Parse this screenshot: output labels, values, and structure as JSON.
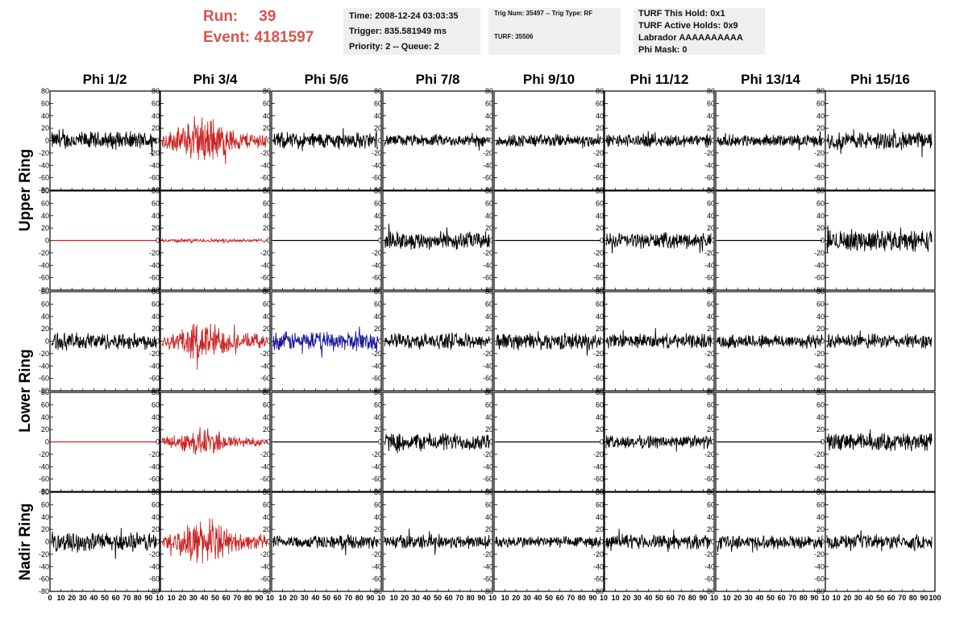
{
  "run_info": {
    "run_label": "Run:",
    "run_value": "39",
    "event_label": "Event:",
    "event_value": "4181597"
  },
  "header_time": {
    "time": "Time: 2008-12-24 03:03:35",
    "trigger": "Trigger: 835.581949 ms",
    "priority": "Priority: 2 -- Queue: 2"
  },
  "header_trig": {
    "trig": "Trig Num: 35497 -- Trig Type: RF",
    "turf": "TURF: 35506"
  },
  "header_turf": {
    "hold": "TURF This Hold: 0x1",
    "active": "TURF Active Holds: 0x9",
    "labrador": "Labrador AAAAAAAAAA",
    "mask": "Phi Mask: 0"
  },
  "colors": {
    "header_run": "#d9534f",
    "box_bg": "#efefef",
    "trace_default": "#000000",
    "trace_red": "#cc2222",
    "trace_blue": "#1a1a99",
    "trace_flat_red": "#cc2222"
  },
  "chart_data": {
    "type": "line",
    "columns": [
      "Phi 1/2",
      "Phi 3/4",
      "Phi 5/6",
      "Phi 7/8",
      "Phi 9/10",
      "Phi 11/12",
      "Phi 13/14",
      "Phi 15/16"
    ],
    "row_groups": [
      "Upper Ring",
      "Lower Ring",
      "Nadir Ring"
    ],
    "ylim": [
      -80,
      80
    ],
    "xlim": [
      0,
      100
    ],
    "yticks": [
      80,
      60,
      40,
      20,
      0,
      -20,
      -40,
      -60,
      -80
    ],
    "yticklabels": [
      "80",
      "60",
      "40",
      "20",
      "0",
      "-20",
      "-40",
      "-60",
      "-80"
    ],
    "xticks_first": [
      "0",
      "10",
      "20",
      "30",
      "40",
      "50",
      "60",
      "70",
      "80",
      "90",
      "10"
    ],
    "xticks_last": [
      "0",
      "10",
      "20",
      "30",
      "40",
      "50",
      "60",
      "70",
      "80",
      "90",
      "100"
    ],
    "panels": [
      [
        {
          "amp": 15,
          "color": "trace_default"
        },
        {
          "amp": 30,
          "color": "trace_red",
          "burst": true
        },
        {
          "amp": 14,
          "color": "trace_default"
        },
        {
          "amp": 10,
          "color": "trace_default"
        },
        {
          "amp": 11,
          "color": "trace_default"
        },
        {
          "amp": 11,
          "color": "trace_default"
        },
        {
          "amp": 10,
          "color": "trace_default"
        },
        {
          "amp": 15,
          "color": "trace_default"
        }
      ],
      [
        {
          "amp": 0,
          "color": "trace_flat_red"
        },
        {
          "amp": 3,
          "color": "trace_red"
        },
        {
          "amp": 0,
          "color": "trace_default"
        },
        {
          "amp": 15,
          "color": "trace_default"
        },
        {
          "amp": 0,
          "color": "trace_default"
        },
        {
          "amp": 13,
          "color": "trace_default"
        },
        {
          "amp": 0,
          "color": "trace_default"
        },
        {
          "amp": 18,
          "color": "trace_default"
        }
      ],
      [
        {
          "amp": 14,
          "color": "trace_default"
        },
        {
          "amp": 26,
          "color": "trace_red",
          "burst": true
        },
        {
          "amp": 16,
          "color": "trace_blue"
        },
        {
          "amp": 13,
          "color": "trace_default"
        },
        {
          "amp": 14,
          "color": "trace_default"
        },
        {
          "amp": 12,
          "color": "trace_default"
        },
        {
          "amp": 12,
          "color": "trace_default"
        },
        {
          "amp": 12,
          "color": "trace_default"
        }
      ],
      [
        {
          "amp": 0,
          "color": "trace_flat_red"
        },
        {
          "amp": 18,
          "color": "trace_red",
          "burst": true
        },
        {
          "amp": 0,
          "color": "trace_default"
        },
        {
          "amp": 15,
          "color": "trace_default"
        },
        {
          "amp": 0,
          "color": "trace_default"
        },
        {
          "amp": 11,
          "color": "trace_default"
        },
        {
          "amp": 0,
          "color": "trace_default"
        },
        {
          "amp": 15,
          "color": "trace_default"
        }
      ],
      [
        {
          "amp": 16,
          "color": "trace_default"
        },
        {
          "amp": 28,
          "color": "trace_red",
          "burst": true
        },
        {
          "amp": 11,
          "color": "trace_default"
        },
        {
          "amp": 12,
          "color": "trace_default"
        },
        {
          "amp": 10,
          "color": "trace_default"
        },
        {
          "amp": 12,
          "color": "trace_default"
        },
        {
          "amp": 11,
          "color": "trace_default"
        },
        {
          "amp": 12,
          "color": "trace_default"
        }
      ]
    ]
  }
}
